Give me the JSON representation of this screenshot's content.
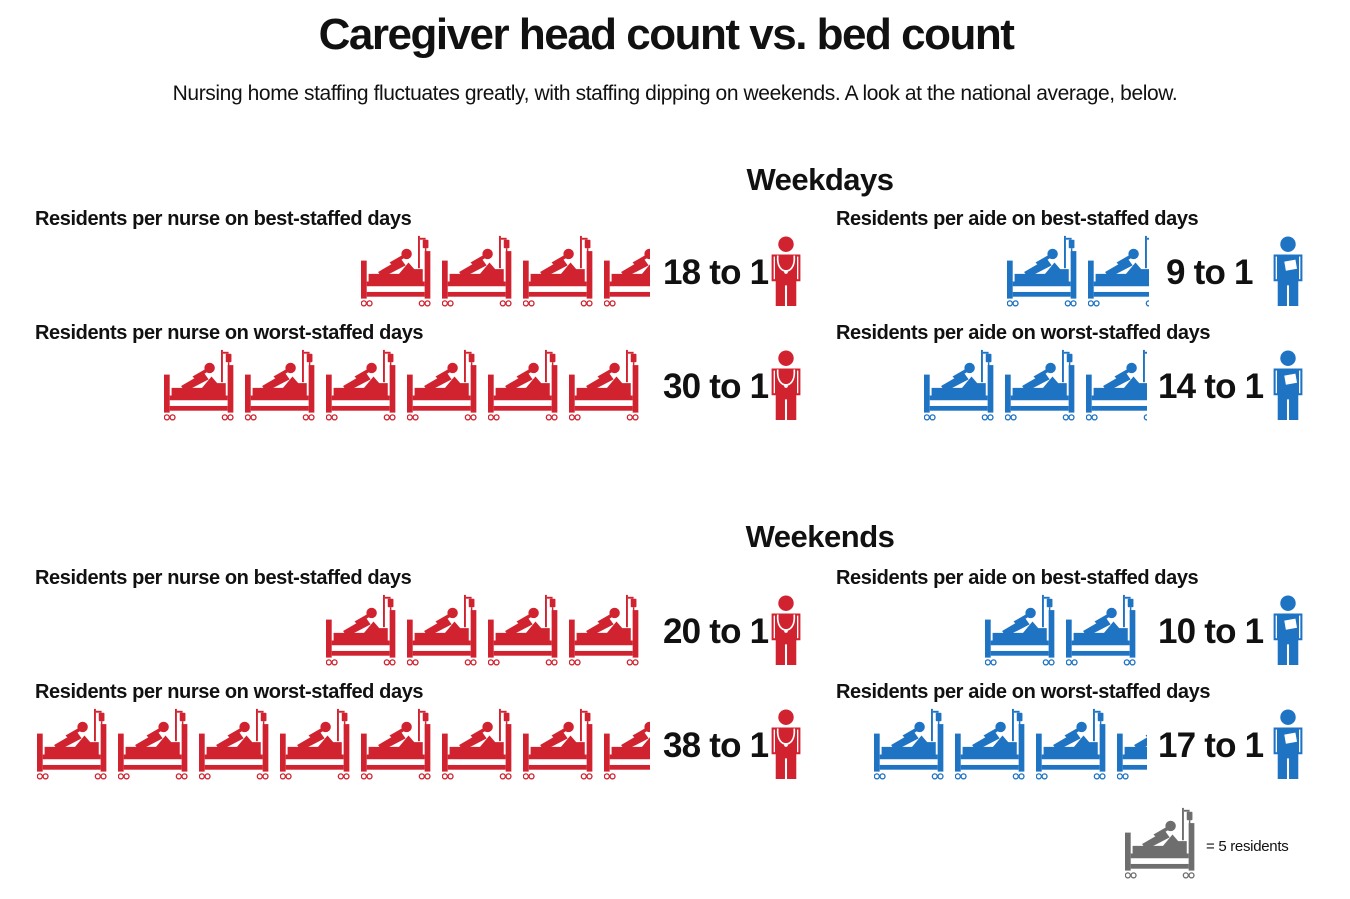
{
  "title": "Caregiver head count vs. bed count",
  "subtitle": "Nursing home staffing fluctuates greatly, with staffing dipping on weekends. A look at the national average, below.",
  "colors": {
    "nurse": "#d0232f",
    "aide": "#1e73c3",
    "legend": "#6e6e6e"
  },
  "icons": {
    "bed": "hospital-bed-icon",
    "nurse": "nurse-icon",
    "aide": "aide-icon"
  },
  "legend": {
    "icon": "hospital-bed-icon",
    "label": "= 5 residents",
    "residents_per_icon": 5
  },
  "chart_data": {
    "type": "pictograph",
    "unit": "residents per caregiver",
    "residents_per_icon": 5,
    "sections": [
      {
        "name": "Weekdays",
        "panels": [
          {
            "key": "wd_nurse_best",
            "label": "Residents per nurse on best-staffed days",
            "role": "nurse",
            "residents": 18,
            "ratio_text": "18 to 1"
          },
          {
            "key": "wd_aide_best",
            "label": "Residents per aide on best-staffed days",
            "role": "aide",
            "residents": 9,
            "ratio_text": "9 to 1"
          },
          {
            "key": "wd_nurse_worst",
            "label": "Residents per nurse on worst-staffed days",
            "role": "nurse",
            "residents": 30,
            "ratio_text": "30 to 1"
          },
          {
            "key": "wd_aide_worst",
            "label": "Residents per aide on worst-staffed days",
            "role": "aide",
            "residents": 14,
            "ratio_text": "14 to 1"
          }
        ]
      },
      {
        "name": "Weekends",
        "panels": [
          {
            "key": "we_nurse_best",
            "label": "Residents per nurse on best-staffed days",
            "role": "nurse",
            "residents": 20,
            "ratio_text": "20 to 1"
          },
          {
            "key": "we_aide_best",
            "label": "Residents per aide on best-staffed days",
            "role": "aide",
            "residents": 10,
            "ratio_text": "10 to 1"
          },
          {
            "key": "we_nurse_worst",
            "label": "Residents per nurse on worst-staffed days",
            "role": "nurse",
            "residents": 38,
            "ratio_text": "38 to 1"
          },
          {
            "key": "we_aide_worst",
            "label": "Residents per aide on worst-staffed days",
            "role": "aide",
            "residents": 17,
            "ratio_text": "17 to 1"
          }
        ]
      }
    ]
  }
}
